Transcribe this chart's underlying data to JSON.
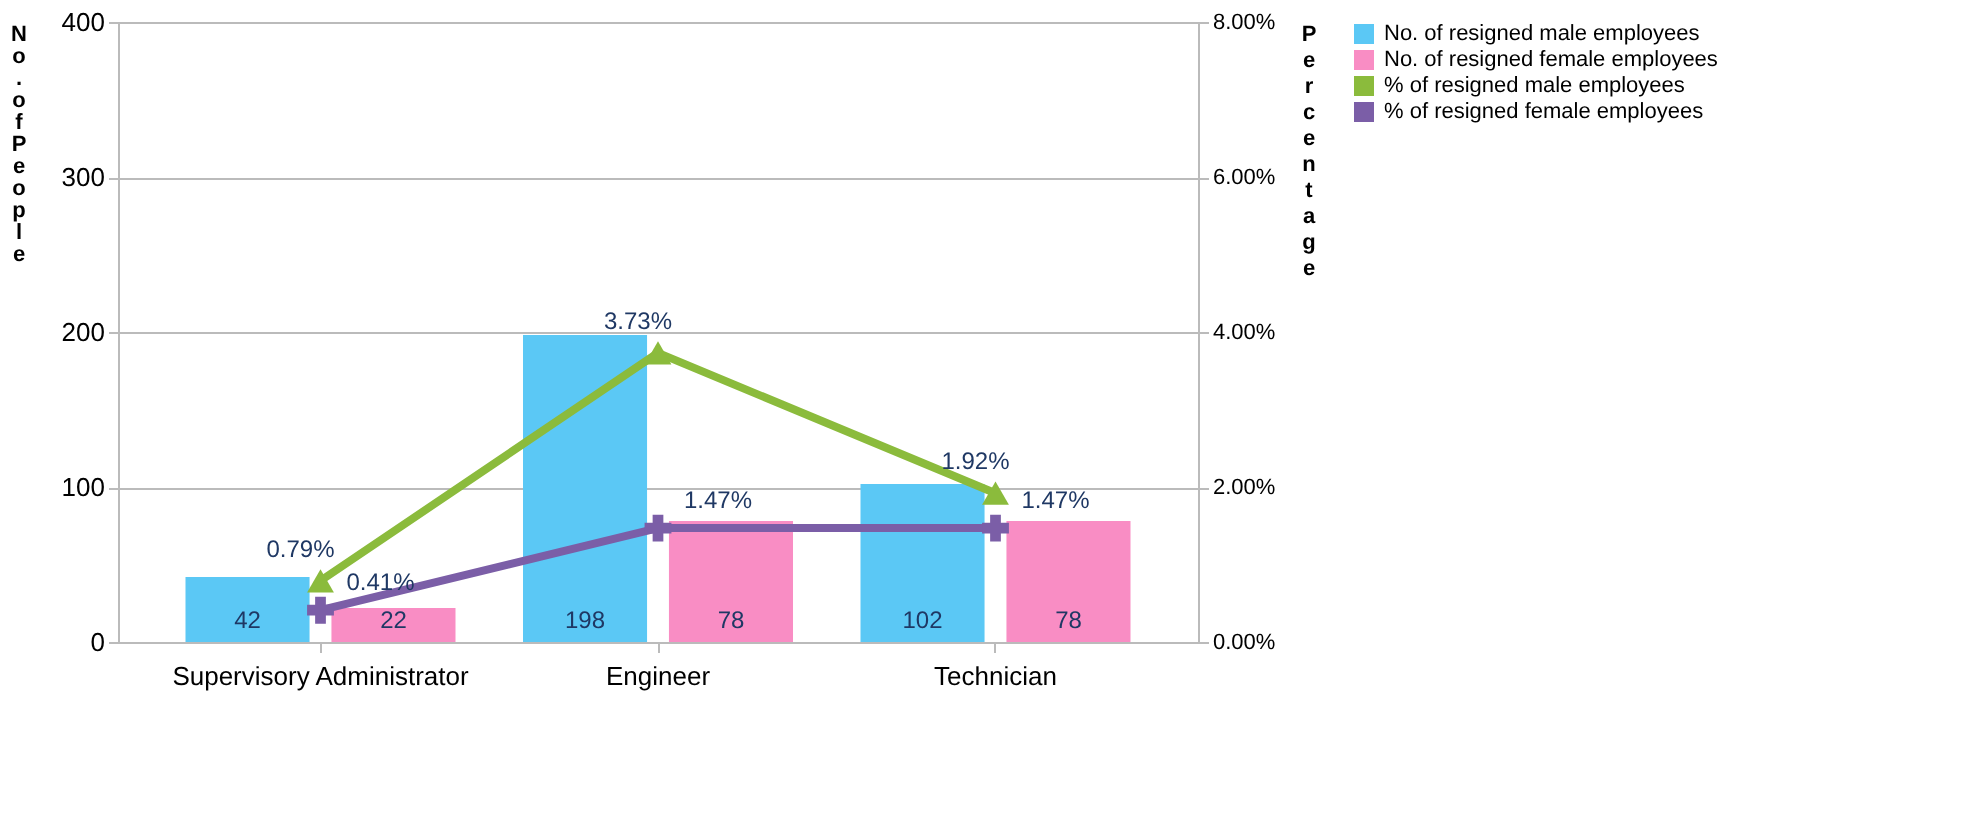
{
  "chart_data": {
    "type": "bar",
    "categories": [
      "Supervisory Administrator",
      "Engineer",
      "Technician"
    ],
    "ylabel": "No. of People",
    "y2label": "Percentage",
    "ylim": [
      0,
      400
    ],
    "yticks": [
      0,
      100,
      200,
      300,
      400
    ],
    "y2lim": [
      0,
      8
    ],
    "y2ticks": [
      {
        "value": 0,
        "label": "0.00%"
      },
      {
        "value": 2,
        "label": "2.00%"
      },
      {
        "value": 4,
        "label": "4.00%"
      },
      {
        "value": 6,
        "label": "6.00%"
      },
      {
        "value": 8,
        "label": "8.00%"
      }
    ],
    "grid": "y",
    "legend": "right",
    "series": [
      {
        "name": "No. of resigned male employees",
        "color": "#5bc8f5",
        "values": [
          42,
          198,
          102
        ],
        "value_labels": [
          "42",
          "198",
          "102"
        ]
      },
      {
        "name": "No. of resigned female employees",
        "color": "#f98dc4",
        "values": [
          22,
          78,
          78
        ],
        "value_labels": [
          "22",
          "78",
          "78"
        ]
      },
      {
        "name": "% of resigned male employees",
        "type": "line",
        "axis": "y2",
        "marker": "triangle",
        "color": "#8bbb3c",
        "values": [
          0.79,
          3.73,
          1.92
        ],
        "value_labels": [
          "0.79%",
          "3.73%",
          "1.92%"
        ]
      },
      {
        "name": "% of resigned female employees",
        "type": "line",
        "axis": "y2",
        "marker": "cross",
        "color": "#7b5ea7",
        "values": [
          0.41,
          1.47,
          1.47
        ],
        "value_labels": [
          "0.41%",
          "1.47%",
          "1.47%"
        ]
      }
    ]
  }
}
